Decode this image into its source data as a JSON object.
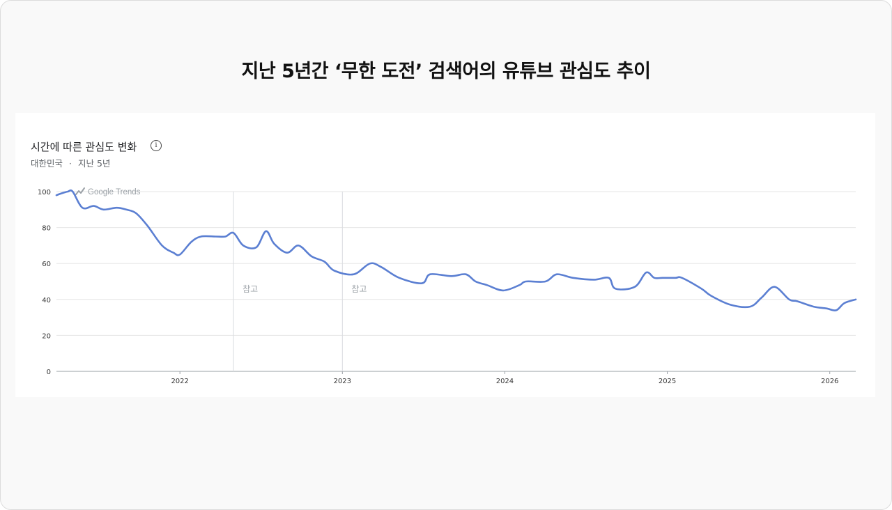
{
  "page": {
    "title": "지난 5년간 ‘무한 도전’ 검색어의 유튜브 관심도 추이"
  },
  "card": {
    "title": "시간에 따른 관심도 변화",
    "region": "대한민국",
    "separator": "·",
    "period": "지난 5년",
    "info_icon": "info-icon"
  },
  "colors": {
    "line": "#5b7fd2",
    "grid": "#e6e6e6",
    "marker": "#dadce0",
    "axis_text": "#333333"
  },
  "chart_data": {
    "type": "line",
    "watermark": "Google Trends",
    "x_tick_labels": [
      "2022",
      "2023",
      "2024",
      "2025",
      "2026"
    ],
    "x_ticks": [
      2022.0,
      2023.0,
      2024.0,
      2025.0,
      2026.0
    ],
    "xlim": [
      2021.24,
      2026.16
    ],
    "ylim": [
      0,
      100
    ],
    "y_ticks": [
      0,
      20,
      40,
      60,
      80,
      100
    ],
    "grid": true,
    "annotations": [
      {
        "x": 2022.33,
        "label": "참고"
      },
      {
        "x": 2023.0,
        "label": "참고"
      }
    ],
    "series": [
      {
        "x": [
          2021.24,
          2021.27,
          2021.31,
          2021.34,
          2021.4,
          2021.47,
          2021.53,
          2021.61,
          2021.67,
          2021.73,
          2021.8,
          2021.89,
          2021.96,
          2022.0,
          2022.07,
          2022.13,
          2022.22,
          2022.28,
          2022.33,
          2022.39,
          2022.47,
          2022.53,
          2022.58,
          2022.66,
          2022.73,
          2022.81,
          2022.89,
          2022.95,
          2023.07,
          2023.17,
          2023.24,
          2023.35,
          2023.49,
          2023.54,
          2023.67,
          2023.76,
          2023.82,
          2023.89,
          2023.99,
          2024.09,
          2024.13,
          2024.25,
          2024.32,
          2024.42,
          2024.55,
          2024.64,
          2024.68,
          2024.8,
          2024.87,
          2024.92,
          2024.97,
          2025.05,
          2025.09,
          2025.21,
          2025.27,
          2025.39,
          2025.51,
          2025.58,
          2025.66,
          2025.75,
          2025.8,
          2025.9,
          2025.98,
          2026.04,
          2026.09,
          2026.16
        ],
        "y": [
          98,
          99,
          100,
          100,
          91,
          92,
          90,
          91,
          90,
          88,
          81,
          70,
          66,
          65,
          72,
          75,
          75,
          75,
          77,
          70,
          69,
          78,
          71,
          66,
          70,
          64,
          61,
          56,
          54,
          60,
          58,
          52,
          49,
          54,
          53,
          54,
          50,
          48,
          45,
          48,
          50,
          50,
          54,
          52,
          51,
          52,
          46,
          47,
          55,
          52,
          52,
          52,
          52,
          46,
          42,
          37,
          36,
          41,
          47,
          40,
          39,
          36,
          35,
          34,
          38,
          40
        ]
      }
    ]
  }
}
